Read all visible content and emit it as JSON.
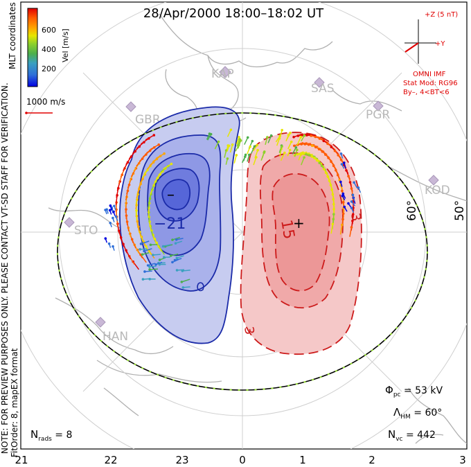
{
  "header": {
    "title": "28/Apr/2000 18:00–18:02 UT"
  },
  "side_notes": {
    "note": "NOTE: FOR PREVIEW PURPOSES ONLY. PLEASE CONTACT VT-SD STAFF FOR VERIFICATION.",
    "fit": "FitOrder: 8, mapEX format",
    "coords": "MLT coordinates"
  },
  "colorbar": {
    "unit_label": "Vel [m/s]",
    "ticks": [
      "600",
      "400",
      "200"
    ],
    "colors": [
      "#0000e0",
      "#2f6fd8",
      "#3aa0c0",
      "#4caf4c",
      "#8fd12a",
      "#e6e600",
      "#ffa500",
      "#ff5a00",
      "#e00000"
    ]
  },
  "velocity_scale": {
    "label": "1000 m/s",
    "color": "#e00000"
  },
  "imf": {
    "z_label": "+Z (5 nT)",
    "y_label": "+Y",
    "source": "OMNI IMF",
    "model": "Stat Mod: RG96",
    "condition": "By–, 4<BT<6",
    "color": "#e00000"
  },
  "stations": [
    "KAP",
    "SAS",
    "PGR",
    "KOD",
    "GBR",
    "STO",
    "HAN"
  ],
  "latitude_labels": [
    "60°",
    "50°"
  ],
  "contours": {
    "negative_label": "−21",
    "positive_label": "15",
    "other_label_a": "3",
    "other_label_b": "3",
    "min_marker": "–",
    "max_marker": "+",
    "neg_color": "#1a2aa8",
    "pos_color": "#cc1a1a"
  },
  "stats": {
    "phi_symbol": "Φ",
    "phi_sub": "pc",
    "phi_value": " = 53 kV",
    "lambda_symbol": "Λ",
    "lambda_sub": "HM",
    "lambda_value": " = 60°",
    "nvc_symbol": "N",
    "nvc_sub": "vc",
    "nvc_value": " = 442",
    "nrads_symbol": "N",
    "nrads_sub": "rads",
    "nrads_value": " = 8"
  },
  "mlt_axis": [
    "21",
    "22",
    "23",
    "0",
    "1",
    "2",
    "3"
  ]
}
